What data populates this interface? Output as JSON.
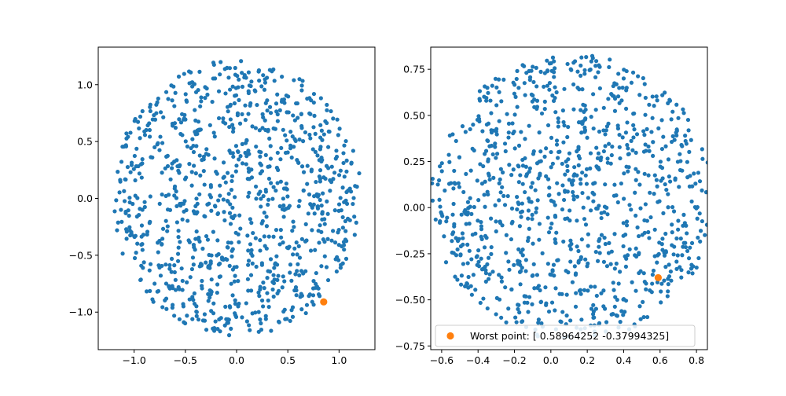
{
  "colors": {
    "scatter": "#1f77b4",
    "highlight": "#ff7f0e",
    "axes": "#000000"
  },
  "chart_data": [
    {
      "type": "scatter",
      "title": "",
      "xlabel": "",
      "ylabel": "",
      "xlim": [
        -1.35,
        1.35
      ],
      "ylim": [
        -1.33,
        1.33
      ],
      "xticks": [
        -1.0,
        -0.5,
        0.0,
        0.5,
        1.0
      ],
      "xtick_labels": [
        "−1.0",
        "−0.5",
        "0.0",
        "0.5",
        "1.0"
      ],
      "yticks": [
        -1.0,
        -0.5,
        0.0,
        0.5,
        1.0
      ],
      "ytick_labels": [
        "−1.0",
        "−0.5",
        "0.0",
        "0.5",
        "1.0"
      ],
      "grid": false,
      "series": [
        {
          "marker": "dot",
          "color": "#1f77b4",
          "approx_count": 1000,
          "shape": "filled disk",
          "center": [
            0.0,
            0.0
          ],
          "radius": 1.22,
          "seed": 17
        },
        {
          "marker": "large-dot",
          "color": "#ff7f0e",
          "points": [
            [
              0.85,
              -0.91
            ]
          ]
        }
      ]
    },
    {
      "type": "scatter",
      "title": "",
      "xlabel": "",
      "ylabel": "",
      "xlim": [
        -0.66,
        0.86
      ],
      "ylim": [
        -0.77,
        0.87
      ],
      "xticks": [
        -0.6,
        -0.4,
        -0.2,
        0.0,
        0.2,
        0.4,
        0.6,
        0.8
      ],
      "xtick_labels": [
        "−0.6",
        "−0.4",
        "−0.2",
        "0.0",
        "0.2",
        "0.4",
        "0.6",
        "0.8"
      ],
      "yticks": [
        -0.75,
        -0.5,
        -0.25,
        0.0,
        0.25,
        0.5,
        0.75
      ],
      "ytick_labels": [
        "−0.75",
        "−0.50",
        "−0.25",
        "0.00",
        "0.25",
        "0.50",
        "0.75"
      ],
      "grid": false,
      "legend": {
        "placement": "bottom",
        "entries": [
          "Worst point: [ 0.58964252 -0.37994325]"
        ]
      },
      "series": [
        {
          "marker": "dot",
          "color": "#1f77b4",
          "approx_count": 1000,
          "shape": "filled disk",
          "center": [
            0.12,
            0.05
          ],
          "radius": 0.78,
          "seed": 29
        },
        {
          "name": "Worst point: [ 0.58964252 -0.37994325]",
          "marker": "large-dot",
          "color": "#ff7f0e",
          "points": [
            [
              0.58964252,
              -0.37994325
            ]
          ]
        }
      ]
    }
  ]
}
